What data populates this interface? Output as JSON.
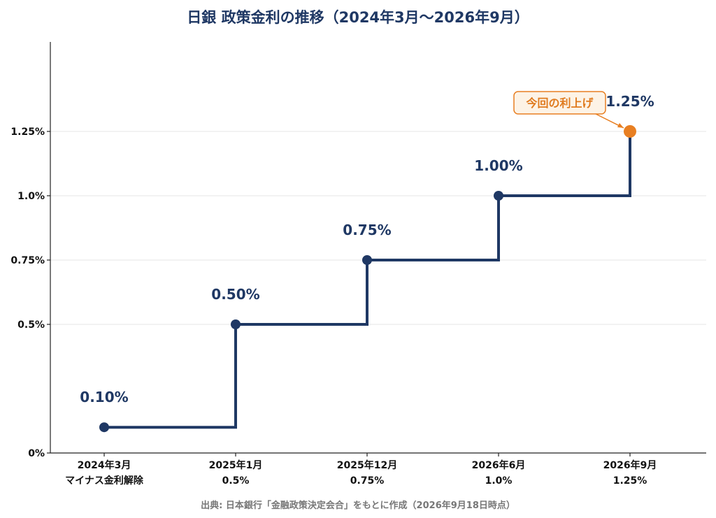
{
  "chart_data": {
    "type": "line",
    "step": "post",
    "title": "日銀 政策金利の推移（2024年3月～2026年9月）",
    "xlabel": "",
    "ylabel": "",
    "ylim": [
      0,
      1.25
    ],
    "y_ticks": [
      {
        "value": 0,
        "label": "0%"
      },
      {
        "value": 0.5,
        "label": "0.5%"
      },
      {
        "value": 0.75,
        "label": "0.75%"
      },
      {
        "value": 1.0,
        "label": "1.0%"
      },
      {
        "value": 1.25,
        "label": "1.25%"
      }
    ],
    "grid": true,
    "points": [
      {
        "x_label": "2024年3月",
        "x_sub": "マイナス金利解除",
        "value": 0.1,
        "data_label": "0.10%"
      },
      {
        "x_label": "2025年1月",
        "x_sub": "0.5%",
        "value": 0.5,
        "data_label": "0.50%"
      },
      {
        "x_label": "2025年12月",
        "x_sub": "0.75%",
        "value": 0.75,
        "data_label": "0.75%"
      },
      {
        "x_label": "2026年6月",
        "x_sub": "1.0%",
        "value": 1.0,
        "data_label": "1.00%"
      },
      {
        "x_label": "2026年9月",
        "x_sub": "1.25%",
        "value": 1.25,
        "data_label": "1.25%"
      }
    ],
    "annotation": {
      "text": "今回の利上げ",
      "point_index": 4
    },
    "colors": {
      "line": "#1f3864",
      "highlight": "#e87f22",
      "callout_bg": "#fdf3e6",
      "grid": "#e5e5e5"
    },
    "source": "出典: 日本銀行「金融政策決定会合」をもとに作成（2026年9月18日時点）"
  }
}
